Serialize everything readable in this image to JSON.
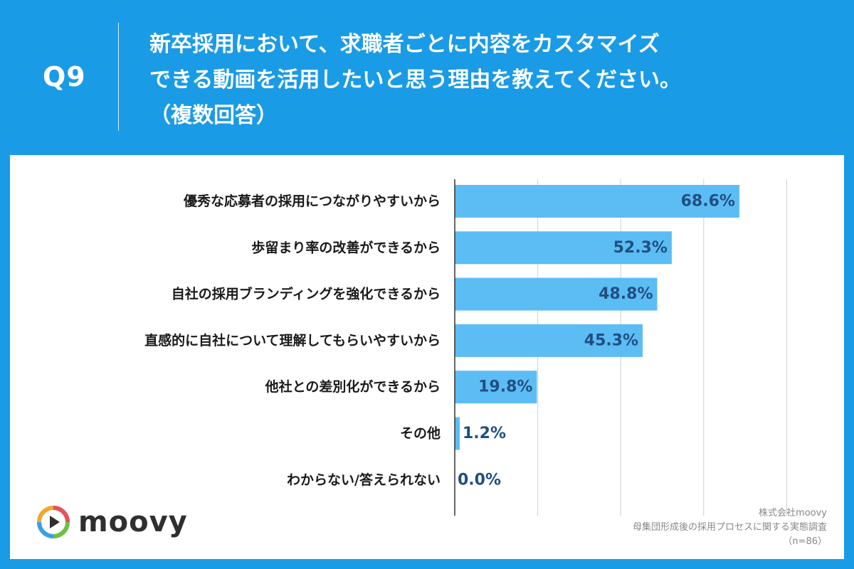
{
  "header": {
    "question_number": "Q9",
    "question_lines": [
      "新卒採用において、求職者ごとに内容をカスタマイズ",
      "できる動画を活用したいと思う理由を教えてください。",
      "（複数回答）"
    ]
  },
  "brand": {
    "logo_text": "moovy",
    "logo_icon": "play-circle-icon"
  },
  "source": {
    "company": "株式会社moovy",
    "survey": "母集団形成後の採用プロセスに関する実態調査",
    "sample": "（n=86）"
  },
  "colors": {
    "background": "#1a9be6",
    "bar": "#5cbdf5",
    "value_text": "#1f4f80",
    "label_text": "#1a1a1a",
    "grid": "#cfcfcf"
  },
  "chart_data": {
    "type": "bar",
    "orientation": "horizontal",
    "unit": "%",
    "xlim": [
      0,
      100
    ],
    "grid": true,
    "categories": [
      "優秀な応募者の採用につながりやすいから",
      "歩留まり率の改善ができるから",
      "自社の採用ブランディングを強化できるから",
      "直感的に自社について理解してもらいやすいから",
      "他社との差別化ができるから",
      "その他",
      "わからない/答えられない"
    ],
    "values": [
      68.6,
      52.3,
      48.8,
      45.3,
      19.8,
      1.2,
      0.0
    ],
    "value_labels": [
      "68.6%",
      "52.3%",
      "48.8%",
      "45.3%",
      "19.8%",
      "1.2%",
      "0.0%"
    ]
  }
}
